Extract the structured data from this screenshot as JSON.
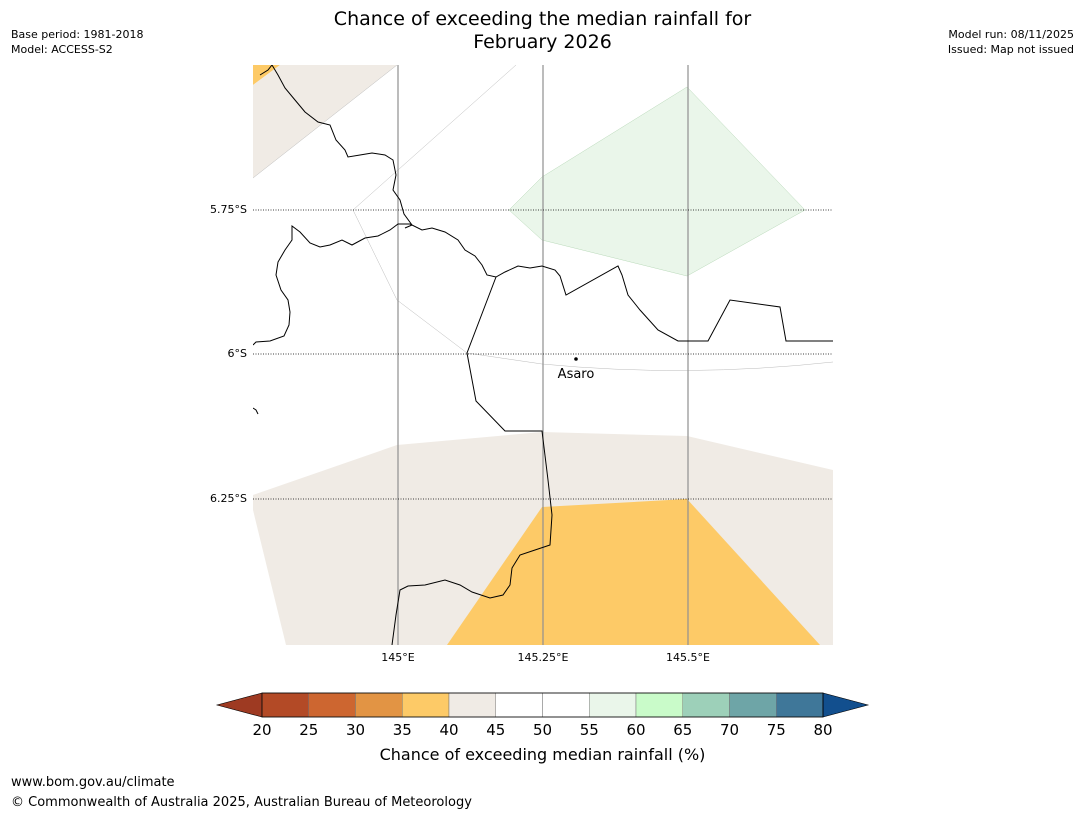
{
  "header": {
    "title_line1": "Chance of exceeding the median rainfall for",
    "title_line2": "February 2026",
    "base_period": "Base period: 1981-2018",
    "model": "Model: ACCESS-S2",
    "model_run": "Model run: 08/11/2025",
    "issued": "Issued: Map not issued"
  },
  "map": {
    "lat_labels": [
      "5.75°S",
      "6°S",
      "6.25°S"
    ],
    "lon_labels": [
      "145°E",
      "145.25°E",
      "145.5°E"
    ],
    "place_label": "Asaro"
  },
  "colorbar": {
    "title": "Chance of exceeding median rainfall (%)",
    "ticks": [
      "20",
      "25",
      "30",
      "35",
      "40",
      "45",
      "50",
      "55",
      "60",
      "65",
      "70",
      "75",
      "80"
    ],
    "colors": [
      "#9e3a22",
      "#b34a26",
      "#cd6630",
      "#e29444",
      "#fdca67",
      "#f0ebe5",
      "#ffffff",
      "#ffffff",
      "#eaf6ea",
      "#c9fbc9",
      "#9dd0b9",
      "#6ea5a7",
      "#3f7799",
      "#124f8e"
    ]
  },
  "footer": {
    "url": "www.bom.gov.au/climate",
    "copyright": "© Commonwealth of Australia 2025, Australian Bureau of Meteorology"
  }
}
